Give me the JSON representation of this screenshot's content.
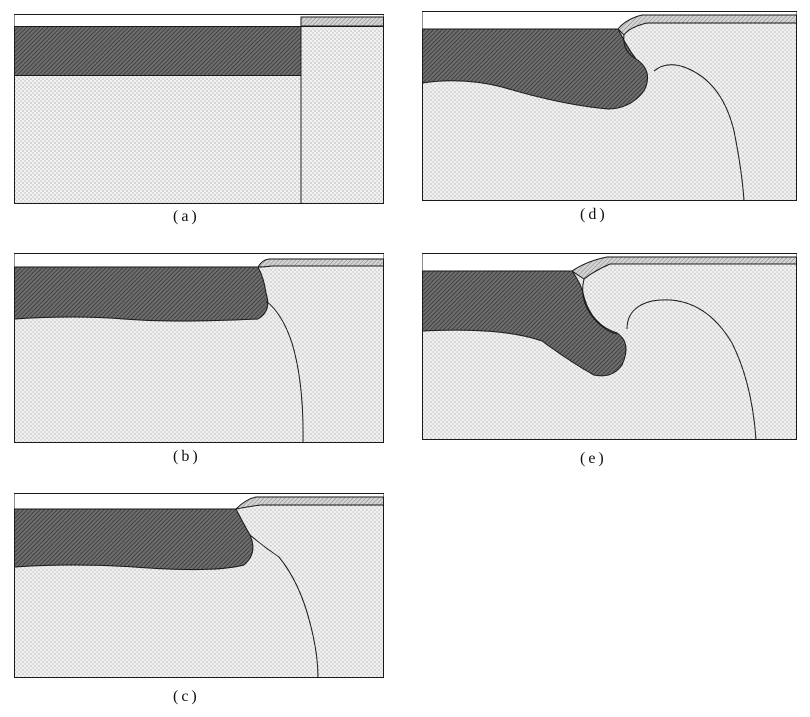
{
  "figure": {
    "panels": [
      {
        "id": "a",
        "caption": "(a)"
      },
      {
        "id": "b",
        "caption": "(b)"
      },
      {
        "id": "c",
        "caption": "(c)"
      },
      {
        "id": "d",
        "caption": "(d)"
      },
      {
        "id": "e",
        "caption": "(e)"
      }
    ],
    "colors": {
      "outline": "#1a1a1a",
      "dotted_substrate": "#e6e6e6",
      "dark_hatched_layer": "#5e5e5e",
      "light_hatched_cap": "#bdbdbd"
    }
  }
}
